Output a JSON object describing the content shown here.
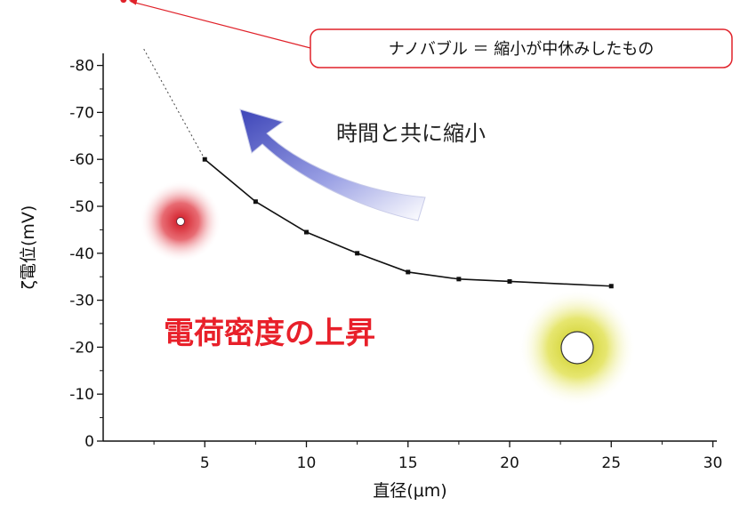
{
  "chart_data": {
    "type": "line",
    "xlabel": "直径(μm)",
    "ylabel": "ζ電位(mV)",
    "xlim": [
      0,
      30
    ],
    "ylim": [
      0,
      -80
    ],
    "x_ticks": [
      "5",
      "10",
      "15",
      "20",
      "25",
      "30"
    ],
    "y_ticks": [
      "0",
      "-10",
      "-20",
      "-30",
      "-40",
      "-50",
      "-60",
      "-70",
      "-80"
    ],
    "series": [
      {
        "x": [
          5,
          7.5,
          10,
          12.5,
          15,
          17.5,
          20,
          25
        ],
        "y": [
          -60,
          -51,
          -44.5,
          -40,
          -36,
          -34.5,
          -34,
          -33
        ]
      }
    ],
    "extrapolation": {
      "x": [
        2,
        5
      ],
      "y": [
        -83.5,
        -60
      ]
    },
    "nanobubble_point": {
      "x": 1,
      "y": -94
    },
    "grid": false,
    "colors": {
      "line": "#111111",
      "callout": "#e0222a",
      "arrow": "#5560c8",
      "bubble_red": "#d8202a",
      "bubble_yellow": "#dcdc28"
    }
  },
  "annotations": {
    "callout": "ナノバブル ＝ 縮小が中休みしたもの",
    "shrink_label": "時間と共に縮小",
    "charge_label": "電荷密度の上昇"
  }
}
